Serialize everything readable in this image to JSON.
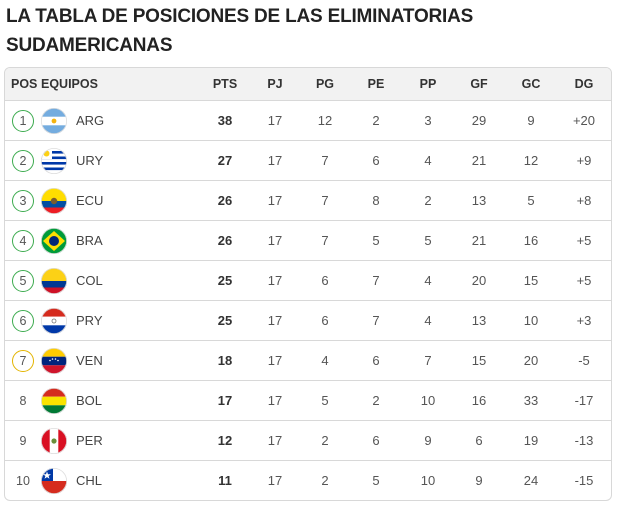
{
  "title": "LA TABLA DE POSICIONES DE LAS ELIMINATORIAS SUDAMERICANAS",
  "headers": {
    "pos": "POS",
    "teams": "EQUIPOS",
    "pts": "PTS",
    "pj": "PJ",
    "pg": "PG",
    "pe": "PE",
    "pp": "PP",
    "gf": "GF",
    "gc": "GC",
    "dg": "DG"
  },
  "rows": [
    {
      "pos": "1",
      "team": "ARG",
      "flag": "argentina-flag-icon",
      "zone": "qualified",
      "pts": "38",
      "pj": "17",
      "pg": "12",
      "pe": "2",
      "pp": "3",
      "gf": "29",
      "gc": "9",
      "dg": "+20"
    },
    {
      "pos": "2",
      "team": "URY",
      "flag": "uruguay-flag-icon",
      "zone": "qualified",
      "pts": "27",
      "pj": "17",
      "pg": "7",
      "pe": "6",
      "pp": "4",
      "gf": "21",
      "gc": "12",
      "dg": "+9"
    },
    {
      "pos": "3",
      "team": "ECU",
      "flag": "ecuador-flag-icon",
      "zone": "qualified",
      "pts": "26",
      "pj": "17",
      "pg": "7",
      "pe": "8",
      "pp": "2",
      "gf": "13",
      "gc": "5",
      "dg": "+8"
    },
    {
      "pos": "4",
      "team": "BRA",
      "flag": "brazil-flag-icon",
      "zone": "qualified",
      "pts": "26",
      "pj": "17",
      "pg": "7",
      "pe": "5",
      "pp": "5",
      "gf": "21",
      "gc": "16",
      "dg": "+5"
    },
    {
      "pos": "5",
      "team": "COL",
      "flag": "colombia-flag-icon",
      "zone": "qualified",
      "pts": "25",
      "pj": "17",
      "pg": "6",
      "pe": "7",
      "pp": "4",
      "gf": "20",
      "gc": "15",
      "dg": "+5"
    },
    {
      "pos": "6",
      "team": "PRY",
      "flag": "paraguay-flag-icon",
      "zone": "qualified",
      "pts": "25",
      "pj": "17",
      "pg": "6",
      "pe": "7",
      "pp": "4",
      "gf": "13",
      "gc": "10",
      "dg": "+3"
    },
    {
      "pos": "7",
      "team": "VEN",
      "flag": "venezuela-flag-icon",
      "zone": "playoff",
      "pts": "18",
      "pj": "17",
      "pg": "4",
      "pe": "6",
      "pp": "7",
      "gf": "15",
      "gc": "20",
      "dg": "-5"
    },
    {
      "pos": "8",
      "team": "BOL",
      "flag": "bolivia-flag-icon",
      "zone": "none",
      "pts": "17",
      "pj": "17",
      "pg": "5",
      "pe": "2",
      "pp": "10",
      "gf": "16",
      "gc": "33",
      "dg": "-17"
    },
    {
      "pos": "9",
      "team": "PER",
      "flag": "peru-flag-icon",
      "zone": "none",
      "pts": "12",
      "pj": "17",
      "pg": "2",
      "pe": "6",
      "pp": "9",
      "gf": "6",
      "gc": "19",
      "dg": "-13"
    },
    {
      "pos": "10",
      "team": "CHL",
      "flag": "chile-flag-icon",
      "zone": "none",
      "pts": "11",
      "pj": "17",
      "pg": "2",
      "pe": "5",
      "pp": "10",
      "gf": "9",
      "gc": "24",
      "dg": "-15"
    }
  ],
  "colors": {
    "qualified": "#3cab4e",
    "playoff": "#e3b400",
    "header_bg": "#f2f2f2",
    "border": "#d8d8d8"
  }
}
